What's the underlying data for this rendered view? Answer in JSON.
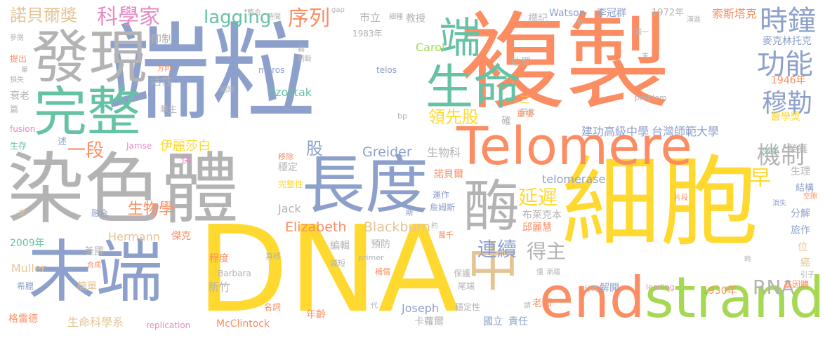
{
  "palette": {
    "blue": "#8da0cb",
    "orange": "#fc8d62",
    "gray": "#b3b3b3",
    "green": "#66c2a5",
    "yellow": "#ffd92f",
    "lime": "#a6d854",
    "tan": "#e5c494",
    "pink": "#e78ac3"
  },
  "words": [
    {
      "text": "端粒"
    },
    {
      "text": "複製"
    },
    {
      "text": "DNA"
    },
    {
      "text": "染色體"
    },
    {
      "text": "細胞"
    },
    {
      "text": "發現"
    },
    {
      "text": "完整"
    },
    {
      "text": "末端"
    },
    {
      "text": "長度"
    },
    {
      "text": "Telomere"
    },
    {
      "text": "end"
    },
    {
      "text": "strand"
    },
    {
      "text": "生命"
    },
    {
      "text": "端"
    },
    {
      "text": "酶"
    },
    {
      "text": "中"
    },
    {
      "text": "時鐘"
    },
    {
      "text": "功能"
    },
    {
      "text": "穆勒"
    },
    {
      "text": "機制"
    },
    {
      "text": "科學家"
    },
    {
      "text": "諾貝爾獎"
    },
    {
      "text": "lagging"
    },
    {
      "text": "序列"
    },
    {
      "text": "領先股"
    },
    {
      "text": "延遲"
    },
    {
      "text": "連續"
    },
    {
      "text": "得主"
    },
    {
      "text": "RNA"
    },
    {
      "text": "早"
    },
    {
      "text": "一段"
    },
    {
      "text": "股"
    },
    {
      "text": "生物學"
    },
    {
      "text": "伊麗莎白"
    },
    {
      "text": "建功高級中學"
    },
    {
      "text": "台灣師範大學"
    },
    {
      "text": "Elizabeth"
    },
    {
      "text": "Blackburn"
    },
    {
      "text": "telomerase"
    },
    {
      "text": "Greider"
    },
    {
      "text": "Szostak"
    },
    {
      "text": "Carol"
    },
    {
      "text": "Jack"
    },
    {
      "text": "Joseph"
    },
    {
      "text": "Hermann"
    },
    {
      "text": "Muller"
    },
    {
      "text": "McClintock"
    },
    {
      "text": "Barbara"
    },
    {
      "text": "Watson"
    },
    {
      "text": "李冠群"
    },
    {
      "text": "1972年"
    },
    {
      "text": "索斯塔克"
    },
    {
      "text": "麥克林托克"
    },
    {
      "text": "1946年"
    },
    {
      "text": "醫學獎"
    },
    {
      "text": "榮獲"
    },
    {
      "text": "生理"
    },
    {
      "text": "結構"
    },
    {
      "text": "分解"
    },
    {
      "text": "旅作"
    },
    {
      "text": "位"
    },
    {
      "text": "癌"
    },
    {
      "text": "基因體"
    },
    {
      "text": "1930年"
    },
    {
      "text": "老師"
    },
    {
      "text": "解開"
    },
    {
      "text": "卡蘿爾"
    },
    {
      "text": "國立"
    },
    {
      "text": "責任"
    },
    {
      "text": "年齡"
    },
    {
      "text": "新竹"
    },
    {
      "text": "程度"
    },
    {
      "text": "簡單"
    },
    {
      "text": "生命科學系"
    },
    {
      "text": "格雷德"
    },
    {
      "text": "美國"
    },
    {
      "text": "2009年"
    },
    {
      "text": "傑克"
    },
    {
      "text": "編輯"
    },
    {
      "text": "預防"
    },
    {
      "text": "邱麗慧"
    },
    {
      "text": "布萊克本"
    },
    {
      "text": "諾貝爾"
    },
    {
      "text": "運作"
    },
    {
      "text": "詹姆斯"
    },
    {
      "text": "穩定"
    },
    {
      "text": "完整性"
    },
    {
      "text": "生物科"
    },
    {
      "text": "抑制"
    },
    {
      "text": "活性"
    },
    {
      "text": "華生"
    },
    {
      "text": "助理"
    },
    {
      "text": "教授"
    },
    {
      "text": "市立"
    },
    {
      "text": "標記"
    },
    {
      "text": "1983年"
    },
    {
      "text": "確"
    },
    {
      "text": "重複"
    },
    {
      "text": "研究"
    },
    {
      "text": "三"
    },
    {
      "text": "meros"
    },
    {
      "text": "telos"
    },
    {
      "text": "衰老"
    },
    {
      "text": "篇"
    },
    {
      "text": "fusion"
    },
    {
      "text": "生存"
    },
    {
      "text": "述"
    },
    {
      "text": "Jamse"
    },
    {
      "text": "移除"
    },
    {
      "text": "保"
    },
    {
      "text": "融合"
    },
    {
      "text": "文"
    },
    {
      "text": "希臘"
    },
    {
      "text": "合成"
    },
    {
      "text": "名詞"
    },
    {
      "text": "replication"
    },
    {
      "text": "真核"
    },
    {
      "text": "減短"
    },
    {
      "text": "primer"
    },
    {
      "text": "補償"
    },
    {
      "text": "穩定性"
    },
    {
      "text": "尾端"
    },
    {
      "text": "保護"
    },
    {
      "text": "請"
    },
    {
      "text": "代"
    },
    {
      "text": "分為"
    },
    {
      "text": "leading"
    },
    {
      "text": "引子"
    },
    {
      "text": "空隙"
    },
    {
      "text": "消失"
    },
    {
      "text": "片段"
    },
    {
      "text": "生物"
    },
    {
      "text": "時"
    },
    {
      "text": "僅"
    },
    {
      "text": "漸趨"
    },
    {
      "text": "萬千"
    },
    {
      "text": "約"
    },
    {
      "text": "期"
    },
    {
      "text": "problem"
    },
    {
      "text": "bp"
    },
    {
      "text": "gap"
    },
    {
      "text": "整合"
    },
    {
      "text": "時間"
    },
    {
      "text": "細種"
    },
    {
      "text": "圖一"
    },
    {
      "text": "演進"
    },
    {
      "text": "終"
    },
    {
      "text": "末"
    },
    {
      "text": "參閱"
    },
    {
      "text": "提出"
    },
    {
      "text": "單"
    },
    {
      "text": "損失"
    },
    {
      "text": "方向"
    },
    {
      "text": "縮短"
    },
    {
      "text": "輪"
    },
    {
      "text": "判斷"
    }
  ]
}
